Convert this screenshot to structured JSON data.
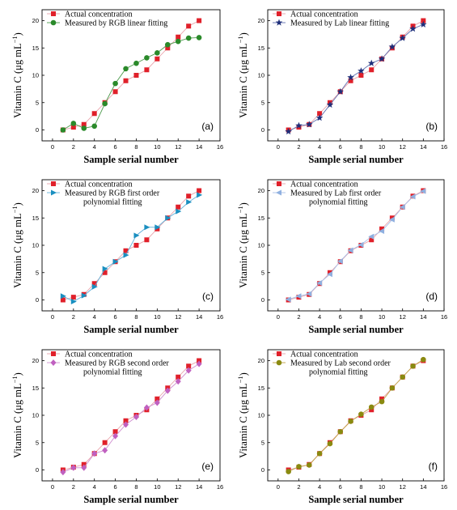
{
  "figure": {
    "xlabel": "Sample serial number",
    "ylabel": "Vitamin C (μg mL",
    "ylabel_superscript": "−1",
    "ylabel_close": ")"
  },
  "chart_data": [
    {
      "type": "line",
      "panel_label": "(a)",
      "x": [
        1,
        2,
        3,
        4,
        5,
        6,
        7,
        8,
        9,
        10,
        11,
        12,
        13,
        14
      ],
      "xlim": [
        -1,
        16
      ],
      "ylim": [
        -2,
        22
      ],
      "xticks": [
        0,
        2,
        4,
        6,
        8,
        10,
        12,
        14,
        16
      ],
      "yticks": [
        0,
        5,
        10,
        15,
        20
      ],
      "legend_position": "top-left",
      "series": [
        {
          "name": "Actual concentration",
          "color": "#e0202a",
          "line_color": "#e8a0a8",
          "marker": "square",
          "values": [
            0,
            0.5,
            1,
            3,
            5,
            7,
            9,
            10,
            11,
            13,
            15,
            17,
            19,
            20
          ]
        },
        {
          "name": "Measured by RGB linear fitting",
          "color": "#2a8a2a",
          "line_color": "#4c9a4c",
          "marker": "circle",
          "values": [
            0,
            1.2,
            0.3,
            0.7,
            4.8,
            8.5,
            11.2,
            12.2,
            13.2,
            14.1,
            15.6,
            16.2,
            16.8,
            16.9
          ]
        }
      ]
    },
    {
      "type": "line",
      "panel_label": "(b)",
      "x": [
        1,
        2,
        3,
        4,
        5,
        6,
        7,
        8,
        9,
        10,
        11,
        12,
        13,
        14
      ],
      "xlim": [
        -1,
        16
      ],
      "ylim": [
        -2,
        22
      ],
      "xticks": [
        0,
        2,
        4,
        6,
        8,
        10,
        12,
        14,
        16
      ],
      "yticks": [
        0,
        5,
        10,
        15,
        20
      ],
      "legend_position": "top-left",
      "series": [
        {
          "name": "Actual concentration",
          "color": "#e0202a",
          "line_color": "#e8a0a8",
          "marker": "square",
          "values": [
            0,
            0.5,
            1,
            3,
            5,
            7,
            9,
            10,
            11,
            13,
            15,
            17,
            19,
            20
          ]
        },
        {
          "name": "Measured by Lab linear fitting",
          "color": "#1f2f7a",
          "line_color": "#6070b0",
          "marker": "star",
          "values": [
            -0.3,
            0.8,
            1.0,
            2.2,
            4.6,
            7.0,
            9.6,
            10.8,
            12.2,
            13.0,
            15.2,
            16.8,
            18.5,
            19.3
          ]
        }
      ]
    },
    {
      "type": "line",
      "panel_label": "(c)",
      "x": [
        1,
        2,
        3,
        4,
        5,
        6,
        7,
        8,
        9,
        10,
        11,
        12,
        13,
        14
      ],
      "xlim": [
        -1,
        16
      ],
      "ylim": [
        -2,
        22
      ],
      "xticks": [
        0,
        2,
        4,
        6,
        8,
        10,
        12,
        14,
        16
      ],
      "yticks": [
        0,
        5,
        10,
        15,
        20
      ],
      "legend_position": "top-left",
      "series": [
        {
          "name": "Actual concentration",
          "color": "#e0202a",
          "line_color": "#e8a0a8",
          "marker": "square",
          "values": [
            0,
            0.5,
            1,
            3,
            5,
            7,
            9,
            10,
            11,
            13,
            15,
            17,
            19,
            20
          ]
        },
        {
          "name": "Measured by RGB first order polynomial fitting",
          "color": "#1a8fc0",
          "line_color": "#60b0d8",
          "marker": "triangle-right",
          "values": [
            0.7,
            -0.3,
            0.8,
            2.4,
            5.7,
            7.0,
            8.2,
            11.8,
            13.3,
            13.3,
            15.0,
            16.2,
            17.9,
            19.2
          ]
        }
      ]
    },
    {
      "type": "line",
      "panel_label": "(d)",
      "x": [
        1,
        2,
        3,
        4,
        5,
        6,
        7,
        8,
        9,
        10,
        11,
        12,
        13,
        14
      ],
      "xlim": [
        -1,
        16
      ],
      "ylim": [
        -2,
        22
      ],
      "xticks": [
        0,
        2,
        4,
        6,
        8,
        10,
        12,
        14,
        16
      ],
      "yticks": [
        0,
        5,
        10,
        15,
        20
      ],
      "legend_position": "top-left",
      "series": [
        {
          "name": "Actual concentration",
          "color": "#e0202a",
          "line_color": "#e8a0a8",
          "marker": "square",
          "values": [
            0,
            0.5,
            1,
            3,
            5,
            7,
            9,
            10,
            11,
            13,
            15,
            17,
            19,
            20
          ]
        },
        {
          "name": "Measured by Lab first order polynomial fitting",
          "color": "#8fb0e0",
          "line_color": "#a8c0e8",
          "marker": "triangle-left",
          "values": [
            0.1,
            0.7,
            1.1,
            3.1,
            4.7,
            7.1,
            9.1,
            10.1,
            11.6,
            12.6,
            14.7,
            17.0,
            18.9,
            19.9
          ]
        }
      ]
    },
    {
      "type": "line",
      "panel_label": "(e)",
      "x": [
        1,
        2,
        3,
        4,
        5,
        6,
        7,
        8,
        9,
        10,
        11,
        12,
        13,
        14
      ],
      "xlim": [
        -1,
        16
      ],
      "ylim": [
        -2,
        22
      ],
      "xticks": [
        0,
        2,
        4,
        6,
        8,
        10,
        12,
        14,
        16
      ],
      "yticks": [
        0,
        5,
        10,
        15,
        20
      ],
      "legend_position": "top-left",
      "series": [
        {
          "name": "Actual concentration",
          "color": "#e0202a",
          "line_color": "#e8a0a8",
          "marker": "square",
          "values": [
            0,
            0.5,
            1,
            3,
            5,
            7,
            9,
            10,
            11,
            13,
            15,
            17,
            19,
            20
          ]
        },
        {
          "name": "Measured by RGB second order polynomial fitting",
          "color": "#c060c0",
          "line_color": "#d090d0",
          "marker": "diamond",
          "values": [
            -0.4,
            0.4,
            0.4,
            3.0,
            3.6,
            6.2,
            8.3,
            9.7,
            11.4,
            12.3,
            14.5,
            16.2,
            18.2,
            19.4
          ]
        }
      ]
    },
    {
      "type": "line",
      "panel_label": "(f)",
      "x": [
        1,
        2,
        3,
        4,
        5,
        6,
        7,
        8,
        9,
        10,
        11,
        12,
        13,
        14
      ],
      "xlim": [
        -1,
        16
      ],
      "ylim": [
        -2,
        22
      ],
      "xticks": [
        0,
        2,
        4,
        6,
        8,
        10,
        12,
        14,
        16
      ],
      "yticks": [
        0,
        5,
        10,
        15,
        20
      ],
      "legend_position": "top-left",
      "series": [
        {
          "name": "Actual concentration",
          "color": "#e0202a",
          "line_color": "#e8a0a8",
          "marker": "square",
          "values": [
            0,
            0.5,
            1,
            3,
            5,
            7,
            9,
            10,
            11,
            13,
            15,
            17,
            19,
            20
          ]
        },
        {
          "name": "Measured by Lab second order polynomial fitting",
          "color": "#8a8a10",
          "line_color": "#c0a040",
          "marker": "circle",
          "values": [
            -0.3,
            0.6,
            0.9,
            3.0,
            4.8,
            7.0,
            8.9,
            10.2,
            11.5,
            12.5,
            15.0,
            17.0,
            19.0,
            20.2
          ]
        }
      ]
    }
  ]
}
